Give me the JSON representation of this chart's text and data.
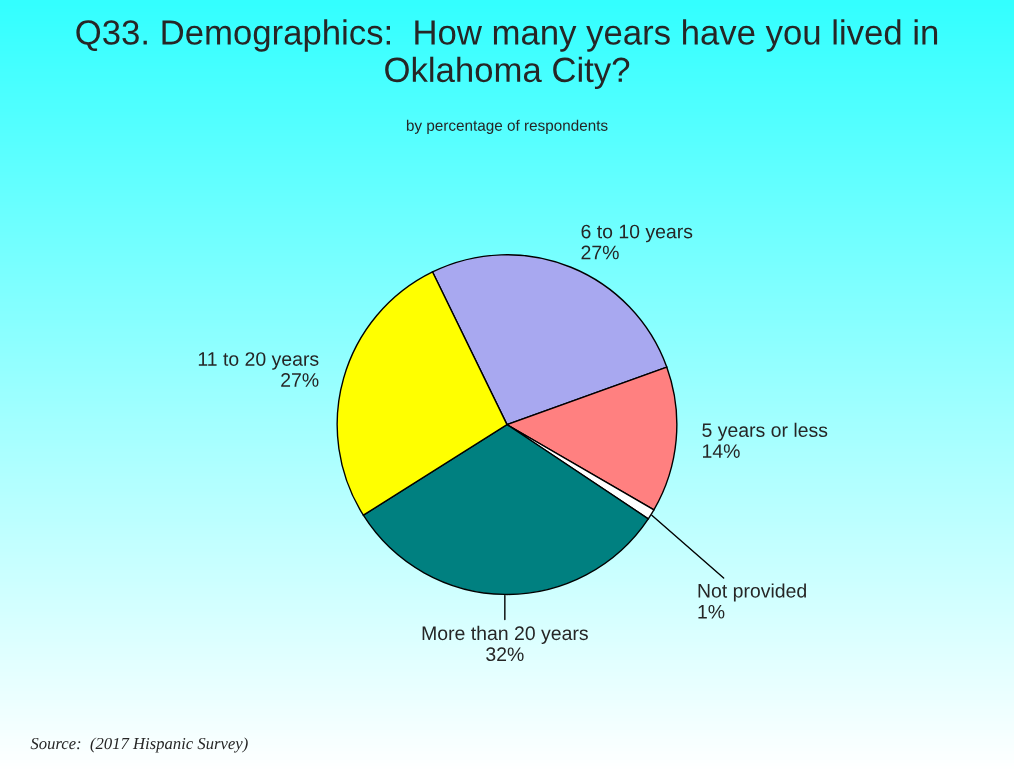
{
  "chart_data": {
    "type": "pie",
    "title": "Q33. Demographics:  How many years have you lived in Oklahoma City?",
    "subtitle": "by percentage of respondents",
    "categories": [
      "6 to 10 years",
      "5 years or less",
      "Not provided",
      "More than 20 years",
      "11 to 20 years"
    ],
    "values": [
      27,
      14,
      1,
      32,
      27
    ],
    "value_labels": [
      "27%",
      "14%",
      "1%",
      "32%",
      "27%"
    ],
    "colors": [
      "#a8a8f0",
      "#ff8080",
      "#ffffff",
      "#008080",
      "#ffff00"
    ],
    "annotations": [
      "Source:  (2017 Hispanic Survey)"
    ]
  }
}
